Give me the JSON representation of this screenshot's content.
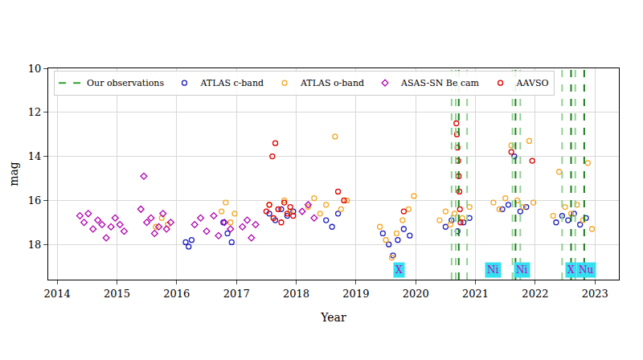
{
  "chart_data": {
    "type": "scatter",
    "x_label": "Year",
    "y_label": "mag",
    "xlim": [
      2013.85,
      2023.4
    ],
    "xticks": [
      2014,
      2015,
      2016,
      2017,
      2018,
      2019,
      2020,
      2021,
      2022,
      2023
    ],
    "ylim": [
      19.6,
      10
    ],
    "yticks": [
      10,
      12,
      14,
      16,
      18
    ],
    "grid": true,
    "legend": "upper left",
    "series": [
      {
        "name": "Our observations",
        "type": "vline",
        "line_style": "dashed",
        "color": "#2ca02c",
        "x": [
          2020.6,
          2020.67,
          2020.72,
          2020.86,
          2021.62,
          2021.67,
          2021.75,
          2022.45,
          2022.6,
          2022.67,
          2022.82
        ],
        "colors": [
          "#8fd18f",
          "#8fd18f",
          "#1a7f1a",
          "#8fd18f",
          "#8fd18f",
          "#1a7f1a",
          "#8fd18f",
          "#8fd18f",
          "#1a7f1a",
          "#8fd18f",
          "#1a7f1a"
        ]
      },
      {
        "name": "ATLAS c-band",
        "color": "#1f1fbf",
        "marker": "circle-open",
        "x": [
          2016.15,
          2016.2,
          2016.25,
          2016.78,
          2016.85,
          2016.92,
          2017.55,
          2017.65,
          2017.75,
          2017.85,
          2017.95,
          2018.5,
          2018.6,
          2018.7,
          2019.45,
          2019.55,
          2019.62,
          2019.7,
          2019.8,
          2019.9,
          2020.5,
          2020.6,
          2020.7,
          2020.8,
          2020.9,
          2021.45,
          2021.55,
          2021.65,
          2021.75,
          2021.85,
          2022.35,
          2022.45,
          2022.55,
          2022.65,
          2022.75,
          2022.85
        ],
        "values": [
          17.9,
          18.1,
          17.8,
          17.0,
          17.5,
          17.9,
          16.6,
          16.9,
          16.4,
          16.7,
          16.5,
          16.9,
          17.2,
          16.6,
          17.5,
          18.0,
          18.5,
          17.8,
          17.3,
          17.6,
          17.2,
          16.9,
          17.4,
          17.0,
          16.8,
          16.4,
          16.2,
          14.0,
          16.5,
          16.3,
          17.0,
          16.7,
          16.9,
          16.6,
          17.1,
          16.8
        ]
      },
      {
        "name": "ATLAS o-band",
        "color": "#f5a623",
        "marker": "circle-open",
        "x": [
          2015.65,
          2015.75,
          2015.85,
          2016.75,
          2016.82,
          2016.9,
          2016.97,
          2017.55,
          2017.62,
          2017.7,
          2017.8,
          2017.9,
          2018.2,
          2018.3,
          2018.4,
          2018.5,
          2018.65,
          2018.75,
          2018.85,
          2019.4,
          2019.5,
          2019.6,
          2019.68,
          2019.78,
          2019.88,
          2019.97,
          2020.4,
          2020.5,
          2020.58,
          2020.65,
          2020.78,
          2020.9,
          2021.3,
          2021.4,
          2021.5,
          2021.6,
          2021.7,
          2021.8,
          2021.9,
          2021.97,
          2022.3,
          2022.4,
          2022.5,
          2022.6,
          2022.7,
          2022.8,
          2022.88,
          2022.95
        ],
        "values": [
          17.2,
          16.8,
          17.1,
          16.5,
          16.1,
          17.0,
          16.6,
          16.2,
          16.8,
          16.4,
          16.0,
          16.5,
          16.3,
          15.9,
          16.6,
          16.2,
          13.1,
          16.4,
          16.0,
          17.2,
          17.8,
          18.6,
          17.5,
          16.9,
          16.4,
          15.8,
          16.9,
          16.5,
          17.1,
          16.6,
          16.8,
          16.3,
          16.1,
          16.4,
          15.9,
          13.5,
          16.0,
          16.3,
          13.3,
          16.1,
          16.7,
          14.7,
          16.3,
          16.6,
          16.2,
          16.9,
          14.3,
          17.3
        ]
      },
      {
        "name": "ASAS-SN Be cam",
        "color": "#b000b0",
        "marker": "diamond-open",
        "x": [
          2014.38,
          2014.45,
          2014.52,
          2014.6,
          2014.68,
          2014.75,
          2014.82,
          2014.9,
          2014.97,
          2015.05,
          2015.12,
          2015.4,
          2015.45,
          2015.5,
          2015.57,
          2015.63,
          2015.7,
          2015.77,
          2015.83,
          2015.9,
          2016.3,
          2016.4,
          2016.5,
          2016.62,
          2016.7,
          2016.8,
          2016.9,
          2017.1,
          2017.18,
          2017.25,
          2017.32,
          2018.1,
          2018.2,
          2018.3
        ],
        "values": [
          16.7,
          17.0,
          16.6,
          17.3,
          16.9,
          17.1,
          17.7,
          17.2,
          16.8,
          17.1,
          17.4,
          16.4,
          14.9,
          17.0,
          16.8,
          17.5,
          17.2,
          16.6,
          17.3,
          17.0,
          17.1,
          16.8,
          17.4,
          16.7,
          17.6,
          17.0,
          17.3,
          17.2,
          16.9,
          17.7,
          17.1,
          16.5,
          16.2,
          16.8
        ]
      },
      {
        "name": "AAVSO",
        "color": "#e00000",
        "marker": "circle-open",
        "x": [
          2017.5,
          2017.55,
          2017.6,
          2017.62,
          2017.65,
          2017.7,
          2017.75,
          2017.8,
          2017.85,
          2017.9,
          2017.95,
          2018.7,
          2018.8,
          2019.8,
          2020.68,
          2020.69,
          2020.7,
          2020.71,
          2020.72,
          2020.73,
          2020.74,
          2020.75,
          2021.6,
          2021.95
        ],
        "values": [
          16.5,
          16.2,
          14.0,
          16.8,
          13.4,
          16.4,
          17.0,
          16.1,
          16.6,
          16.3,
          16.7,
          15.6,
          16.0,
          16.5,
          12.5,
          13.0,
          13.6,
          14.2,
          14.9,
          15.6,
          16.4,
          17.0,
          13.8,
          14.2
        ]
      }
    ],
    "annotations": [
      {
        "text": "X",
        "x": 2019.72,
        "y": 19.15
      },
      {
        "text": "Ni",
        "x": 2021.3,
        "y": 19.15
      },
      {
        "text": "Ni",
        "x": 2021.78,
        "y": 19.15
      },
      {
        "text": "X",
        "x": 2022.6,
        "y": 19.15
      },
      {
        "text": "Nu",
        "x": 2022.85,
        "y": 19.15
      }
    ]
  }
}
